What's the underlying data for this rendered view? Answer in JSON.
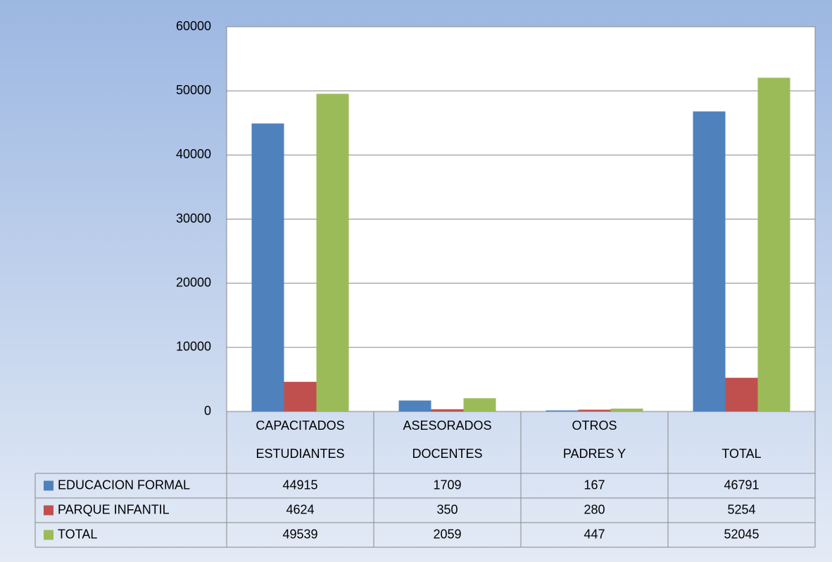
{
  "chart_data": {
    "type": "bar",
    "categories": [
      [
        "CAPACITADOS",
        "ESTUDIANTES"
      ],
      [
        "ASESORADOS",
        "DOCENTES"
      ],
      [
        "OTROS",
        "PADRES Y"
      ],
      [
        "TOTAL"
      ]
    ],
    "series": [
      {
        "name": "EDUCACION FORMAL",
        "color": "#4f81bd",
        "values": [
          44915,
          1709,
          167,
          46791
        ]
      },
      {
        "name": "PARQUE INFANTIL",
        "color": "#c0504d",
        "values": [
          4624,
          350,
          280,
          5254
        ]
      },
      {
        "name": "TOTAL",
        "color": "#9bbb59",
        "values": [
          49539,
          2059,
          447,
          52045
        ]
      }
    ],
    "ylim": [
      0,
      60000
    ],
    "yticks": [
      0,
      10000,
      20000,
      30000,
      40000,
      50000,
      60000
    ],
    "grid": true,
    "legend": "table"
  }
}
